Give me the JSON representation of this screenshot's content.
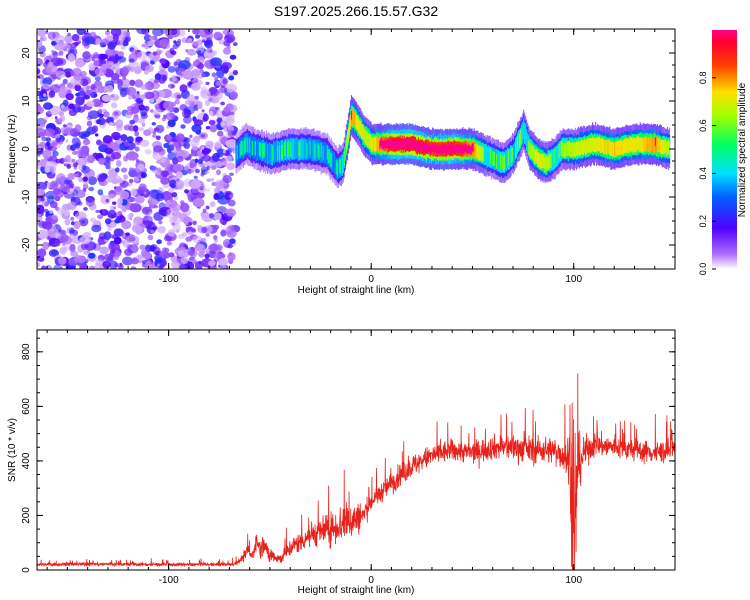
{
  "title": "S197.2025.266.15.57.G32",
  "colors": {
    "snr_line": "#e8221b",
    "axis": "#000000",
    "colorbar_stops": [
      "#d0d0ff",
      "#8a2be2",
      "#0000ff",
      "#00ffff",
      "#00ff00",
      "#ffff00",
      "#ff0000",
      "#ff00aa"
    ]
  },
  "chart_data": [
    {
      "type": "heatmap",
      "title": "S197.2025.266.15.57.G32",
      "xlabel": "Height of straight line (km)",
      "ylabel": "Frequency (Hz)",
      "xlim": [
        -165,
        150
      ],
      "ylim": [
        -25,
        25
      ],
      "xticks": [
        -100,
        0,
        100
      ],
      "yticks": [
        -20,
        -10,
        0,
        10,
        20
      ],
      "colorbar": {
        "label": "Normalized spectral amplitude",
        "range": [
          0,
          1
        ],
        "ticks": [
          "0.0",
          "0.2",
          "0.4",
          "0.6",
          "0.8"
        ]
      },
      "noise_region_x": [
        -165,
        -67
      ],
      "ridge": {
        "x": [
          -67,
          -62,
          -57,
          -50,
          -40,
          -30,
          -22,
          -17,
          -14,
          -12,
          -10,
          -8,
          -4,
          0,
          10,
          20,
          30,
          40,
          50,
          55,
          60,
          65,
          70,
          73,
          75,
          78,
          82,
          86,
          90,
          94,
          100,
          110,
          120,
          130,
          140,
          147
        ],
        "freq": [
          -1,
          1,
          0,
          -1,
          0,
          0,
          -1,
          -4,
          -3,
          2,
          7,
          6,
          3,
          1,
          1,
          1,
          0,
          0,
          0,
          -1,
          -2,
          -3,
          -1,
          2,
          4,
          0,
          -2,
          -3,
          -2,
          0,
          0,
          1,
          0,
          1,
          1,
          0
        ],
        "amp": [
          0.25,
          0.3,
          0.3,
          0.35,
          0.4,
          0.35,
          0.3,
          0.3,
          0.4,
          0.55,
          0.7,
          0.65,
          0.55,
          0.6,
          0.85,
          0.9,
          0.8,
          0.85,
          0.7,
          0.5,
          0.4,
          0.45,
          0.4,
          0.5,
          0.4,
          0.5,
          0.6,
          0.55,
          0.45,
          0.5,
          0.55,
          0.6,
          0.65,
          0.6,
          0.7,
          0.5
        ]
      }
    },
    {
      "type": "line",
      "title": "",
      "xlabel": "Height of straight line (km)",
      "ylabel": "SNR (10 * v/v)",
      "xlim": [
        -165,
        150
      ],
      "ylim": [
        0,
        880
      ],
      "xticks": [
        -100,
        0,
        100
      ],
      "yticks": [
        0,
        200,
        400,
        600,
        800
      ],
      "series": [
        {
          "name": "SNR",
          "x": [
            -165,
            -140,
            -120,
            -100,
            -80,
            -68,
            -60,
            -55,
            -50,
            -45,
            -40,
            -30,
            -20,
            -12,
            -5,
            0,
            10,
            20,
            30,
            40,
            50,
            60,
            70,
            80,
            90,
            95,
            98,
            100,
            102,
            105,
            110,
            120,
            130,
            140,
            150
          ],
          "y": [
            20,
            22,
            21,
            20,
            20,
            21,
            60,
            100,
            60,
            40,
            80,
            130,
            150,
            180,
            190,
            250,
            320,
            380,
            420,
            440,
            430,
            450,
            450,
            440,
            440,
            420,
            400,
            120,
            380,
            430,
            460,
            450,
            440,
            430,
            440
          ],
          "noise": [
            8,
            8,
            8,
            8,
            8,
            8,
            25,
            45,
            35,
            25,
            40,
            55,
            70,
            100,
            60,
            40,
            50,
            50,
            50,
            50,
            50,
            55,
            60,
            60,
            60,
            70,
            150,
            300,
            140,
            70,
            55,
            50,
            50,
            50,
            55
          ]
        }
      ]
    }
  ]
}
